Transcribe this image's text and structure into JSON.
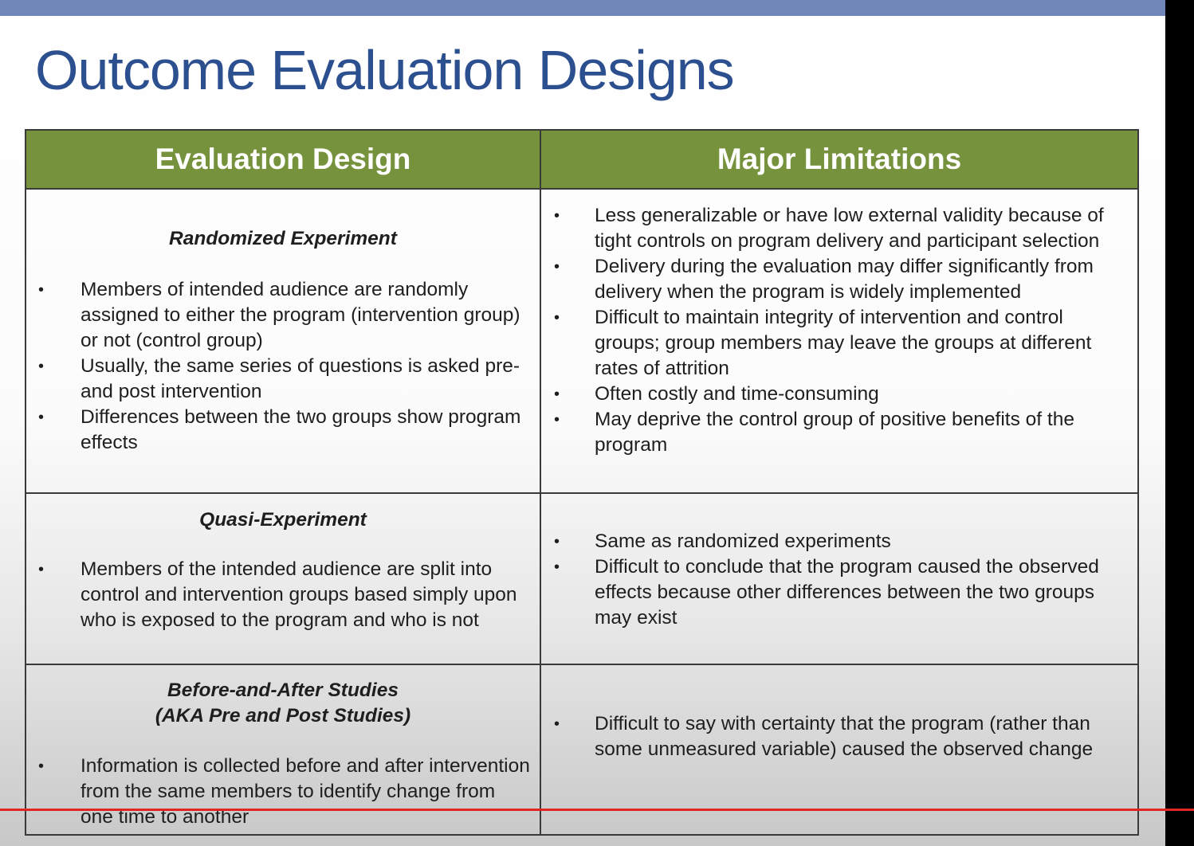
{
  "title": "Outcome Evaluation Designs",
  "table": {
    "headers": [
      "Evaluation Design",
      "Major Limitations"
    ],
    "rows": [
      {
        "design_name": "Randomized Experiment",
        "design_bullets": [
          "Members of intended audience are randomly assigned to either the program (intervention group) or not (control group)",
          "Usually, the same series of questions is asked pre- and post intervention",
          "Differences between the two groups show program effects"
        ],
        "limitations": [
          "Less generalizable or have low external validity because of tight controls on program delivery and participant selection",
          "Delivery during the evaluation may differ significantly from delivery when the program is widely implemented",
          "Difficult to maintain integrity of intervention and control groups; group members may leave the groups at different rates of attrition",
          "Often costly and time-consuming",
          "May deprive the control group of positive benefits of the program"
        ]
      },
      {
        "design_name": "Quasi-Experiment",
        "design_bullets": [
          "Members of the intended audience are split into control and intervention groups based simply upon who is exposed to the program and who is not"
        ],
        "limitations": [
          "Same as randomized experiments",
          "Difficult to conclude that the program caused the observed effects because other differences between the two groups may exist"
        ]
      },
      {
        "design_name": "Before-and-After Studies\n(AKA Pre and Post Studies)",
        "design_bullets": [
          "Information is collected before and after intervention from the same members to identify change from one time to another"
        ],
        "limitations": [
          "Difficult to say with certainty that the program (rather than some unmeasured variable) caused the observed change"
        ]
      }
    ]
  },
  "colors": {
    "title": "#2b4f8f",
    "header_bg": "#76923c",
    "top_bar": "#7186b9",
    "progress_line": "#e0271f"
  }
}
